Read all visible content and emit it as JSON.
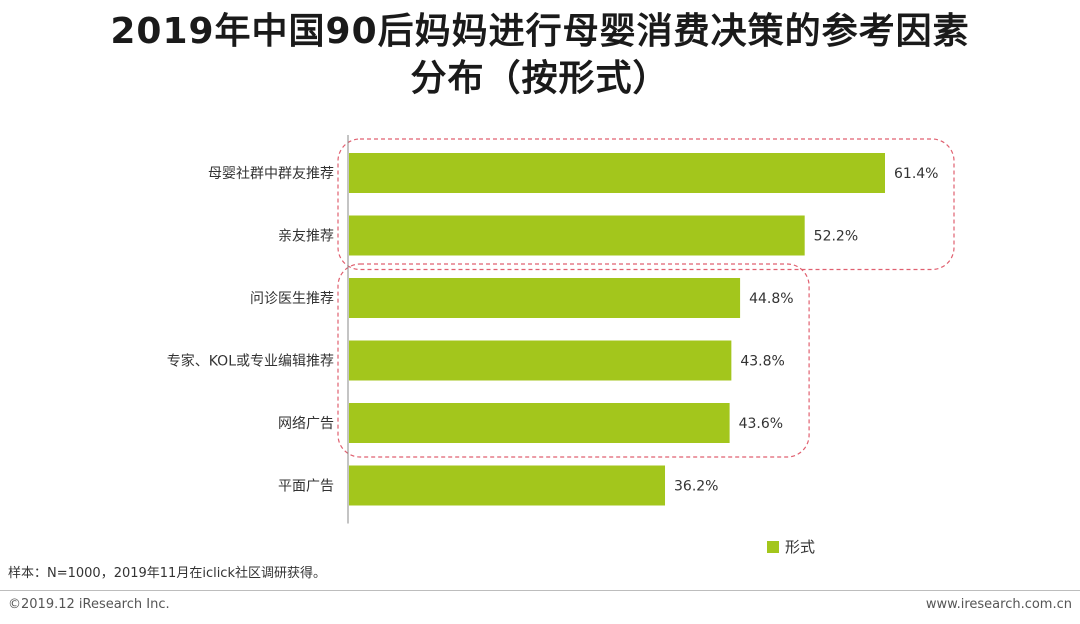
{
  "title_line1": "2019年中国90后妈妈进行母婴消费决策的参考因素",
  "title_line2": "分布（按形式）",
  "legend_label": "形式",
  "note": "样本：N=1000，2019年11月在iclick社区调研获得。",
  "footer_left": "©2019.12 iResearch Inc.",
  "footer_right": "www.iresearch.com.cn",
  "colors": {
    "bar": "#a3c61c",
    "highlight": "#e06070",
    "axis": "#888888"
  },
  "chart_data": {
    "type": "bar",
    "orientation": "horizontal",
    "categories": [
      "母婴社群中群友推荐",
      "亲友推荐",
      "问诊医生推荐",
      "专家、KOL或专业编辑推荐",
      "网络广告",
      "平面广告"
    ],
    "series": [
      {
        "name": "形式",
        "values": [
          61.4,
          52.2,
          44.8,
          43.8,
          43.6,
          36.2
        ]
      }
    ],
    "value_labels": [
      "61.4%",
      "52.2%",
      "44.8%",
      "43.8%",
      "43.6%",
      "36.2%"
    ],
    "unit": "%",
    "xlim": [
      0,
      61.4
    ],
    "grid": false,
    "legend_position": "bottom-right",
    "highlight_groups": [
      [
        0,
        1
      ],
      [
        2,
        3,
        4
      ]
    ]
  }
}
